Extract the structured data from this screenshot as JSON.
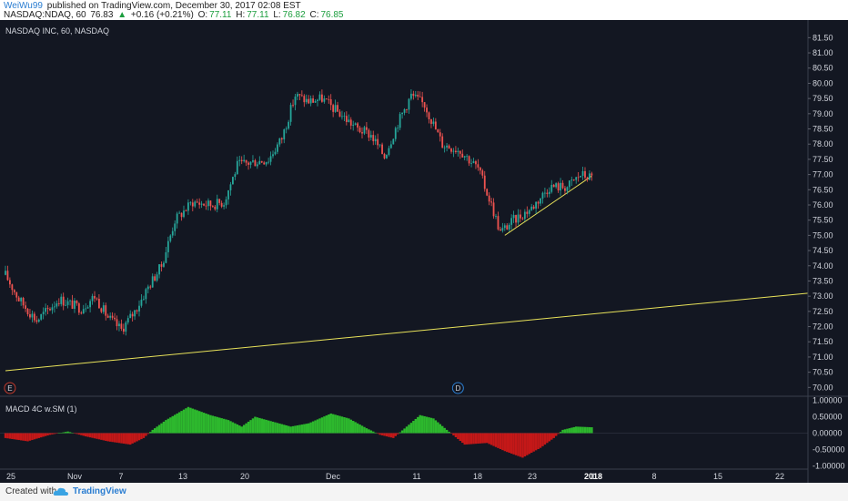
{
  "header": {
    "author": "WeiWu99",
    "published_text": "published on TradingView.com, December 30, 2017 02:08 EST",
    "symbol": "NASDAQ:NDAQ, 60",
    "last": "76.83",
    "change": "+0.16 (+0.21%)",
    "o_label": "O:",
    "o": "77.11",
    "h_label": "H:",
    "h": "77.11",
    "l_label": "L:",
    "l": "76.82",
    "c_label": "C:",
    "c": "76.85"
  },
  "chart_title": "NASDAQ INC, 60, NASDAQ",
  "indicator_label": "MACD 4C w.SM (1)",
  "footer": {
    "created": "Created with",
    "brand": "TradingView"
  },
  "colors": {
    "bg": "#131722",
    "up": "#26a69a",
    "down": "#ef5350",
    "trend": "#e8e25a",
    "macd_up": "#2db82d",
    "macd_down": "#c41818"
  },
  "chart_data": {
    "type": "candlestick",
    "title": "NASDAQ INC, 60, NASDAQ",
    "price_ticks": [
      "81.50",
      "81.00",
      "80.50",
      "80.00",
      "79.50",
      "79.00",
      "78.50",
      "78.00",
      "77.50",
      "77.00",
      "76.50",
      "76.00",
      "75.50",
      "75.00",
      "74.50",
      "74.00",
      "73.50",
      "73.00",
      "72.50",
      "72.00",
      "71.50",
      "71.00",
      "70.50",
      "70.00"
    ],
    "ylim": [
      69.8,
      81.9
    ],
    "x_ticks": [
      "25",
      "Nov",
      "7",
      "13",
      "20",
      "Dec",
      "11",
      "18",
      "23",
      "1",
      "8",
      "15",
      "22"
    ],
    "x_ticks_bold": [
      "2018"
    ],
    "price_path": [
      {
        "bar": 0,
        "price": 73.7
      },
      {
        "bar": 6,
        "price": 72.9
      },
      {
        "bar": 14,
        "price": 72.2
      },
      {
        "bar": 24,
        "price": 72.9
      },
      {
        "bar": 34,
        "price": 72.6
      },
      {
        "bar": 40,
        "price": 73.0
      },
      {
        "bar": 46,
        "price": 72.3
      },
      {
        "bar": 52,
        "price": 71.9
      },
      {
        "bar": 58,
        "price": 72.5
      },
      {
        "bar": 64,
        "price": 73.3
      },
      {
        "bar": 70,
        "price": 74.0
      },
      {
        "bar": 76,
        "price": 75.5
      },
      {
        "bar": 84,
        "price": 76.1
      },
      {
        "bar": 92,
        "price": 76.0
      },
      {
        "bar": 98,
        "price": 76.1
      },
      {
        "bar": 104,
        "price": 77.3
      },
      {
        "bar": 110,
        "price": 77.4
      },
      {
        "bar": 118,
        "price": 77.5
      },
      {
        "bar": 124,
        "price": 78.2
      },
      {
        "bar": 130,
        "price": 79.6
      },
      {
        "bar": 136,
        "price": 79.4
      },
      {
        "bar": 142,
        "price": 79.5
      },
      {
        "bar": 150,
        "price": 79.0
      },
      {
        "bar": 158,
        "price": 78.5
      },
      {
        "bar": 164,
        "price": 78.3
      },
      {
        "bar": 170,
        "price": 77.6
      },
      {
        "bar": 176,
        "price": 78.7
      },
      {
        "bar": 182,
        "price": 79.6
      },
      {
        "bar": 188,
        "price": 79.3
      },
      {
        "bar": 196,
        "price": 78.0
      },
      {
        "bar": 204,
        "price": 77.8
      },
      {
        "bar": 212,
        "price": 77.2
      },
      {
        "bar": 218,
        "price": 76.0
      },
      {
        "bar": 222,
        "price": 75.1
      },
      {
        "bar": 228,
        "price": 75.5
      },
      {
        "bar": 236,
        "price": 75.9
      },
      {
        "bar": 244,
        "price": 76.6
      },
      {
        "bar": 252,
        "price": 76.6
      },
      {
        "bar": 258,
        "price": 77.0
      },
      {
        "bar": 263,
        "price": 76.9
      }
    ],
    "trendlines": [
      {
        "from": {
          "bar": 0,
          "price": 70.55
        },
        "to": {
          "bar": 362,
          "price": 73.1
        }
      },
      {
        "from": {
          "bar": 224,
          "price": 75.0
        },
        "to": {
          "bar": 263,
          "price": 76.95
        }
      }
    ],
    "events": [
      {
        "label": "E",
        "bar": 2
      },
      {
        "label": "D",
        "bar": 203
      }
    ],
    "macd": {
      "ticks": [
        "1.00000",
        "0.50000",
        "0.00000",
        "-0.50000",
        "-1.00000"
      ],
      "ylim": [
        -1.1,
        1.1
      ],
      "path": [
        {
          "bar": 0,
          "value": -0.15
        },
        {
          "bar": 10,
          "value": -0.25
        },
        {
          "bar": 20,
          "value": -0.05
        },
        {
          "bar": 28,
          "value": 0.05
        },
        {
          "bar": 36,
          "value": -0.1
        },
        {
          "bar": 46,
          "value": -0.25
        },
        {
          "bar": 56,
          "value": -0.35
        },
        {
          "bar": 62,
          "value": -0.15
        },
        {
          "bar": 66,
          "value": 0.1
        },
        {
          "bar": 72,
          "value": 0.4
        },
        {
          "bar": 82,
          "value": 0.8
        },
        {
          "bar": 92,
          "value": 0.55
        },
        {
          "bar": 100,
          "value": 0.4
        },
        {
          "bar": 106,
          "value": 0.2
        },
        {
          "bar": 112,
          "value": 0.5
        },
        {
          "bar": 120,
          "value": 0.35
        },
        {
          "bar": 128,
          "value": 0.2
        },
        {
          "bar": 136,
          "value": 0.3
        },
        {
          "bar": 146,
          "value": 0.6
        },
        {
          "bar": 154,
          "value": 0.45
        },
        {
          "bar": 162,
          "value": 0.15
        },
        {
          "bar": 168,
          "value": -0.05
        },
        {
          "bar": 174,
          "value": -0.15
        },
        {
          "bar": 180,
          "value": 0.2
        },
        {
          "bar": 186,
          "value": 0.55
        },
        {
          "bar": 192,
          "value": 0.45
        },
        {
          "bar": 198,
          "value": 0.1
        },
        {
          "bar": 206,
          "value": -0.35
        },
        {
          "bar": 216,
          "value": -0.3
        },
        {
          "bar": 224,
          "value": -0.55
        },
        {
          "bar": 232,
          "value": -0.75
        },
        {
          "bar": 240,
          "value": -0.45
        },
        {
          "bar": 246,
          "value": -0.15
        },
        {
          "bar": 250,
          "value": 0.1
        },
        {
          "bar": 256,
          "value": 0.2
        },
        {
          "bar": 263,
          "value": 0.18
        }
      ]
    }
  }
}
